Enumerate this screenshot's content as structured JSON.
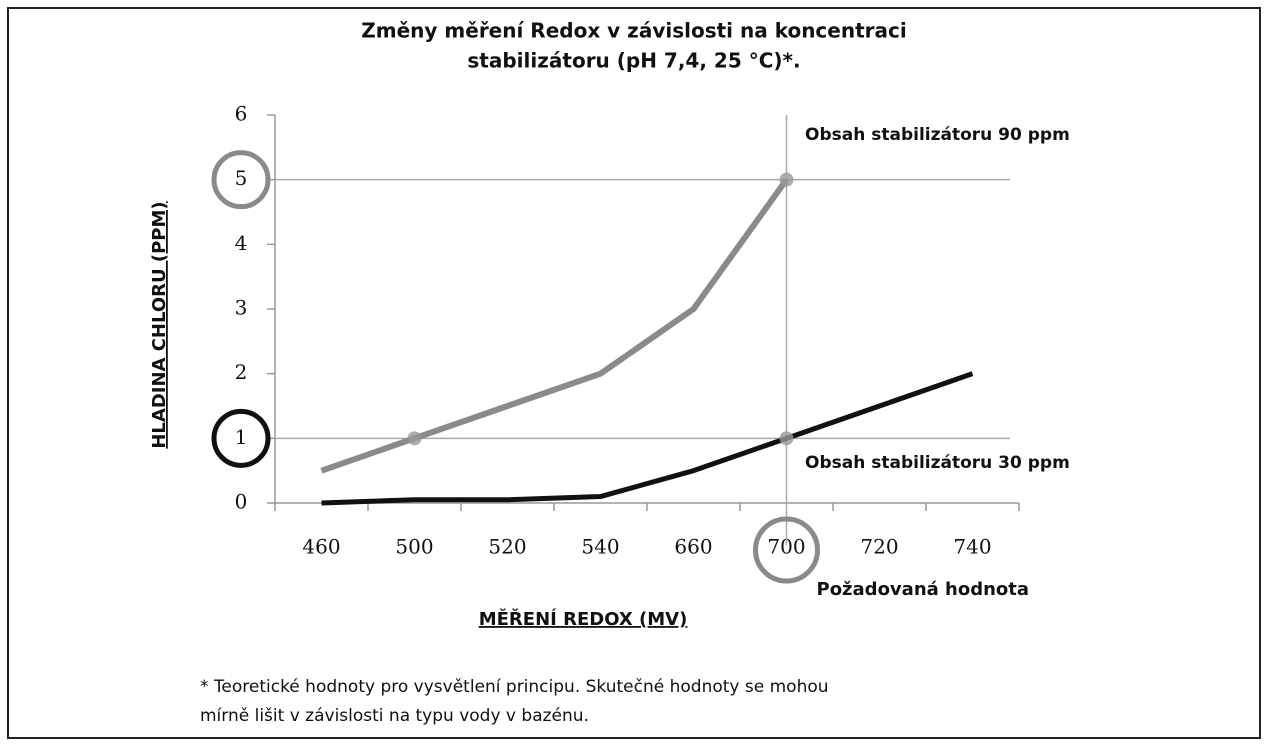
{
  "chart_data": {
    "type": "line",
    "title": [
      "Změny měření Redox v závislosti na koncentraci",
      "stabilizátoru (pH 7,4, 25 °C)*."
    ],
    "x_label": "MĚŘENÍ REDOX (MV)",
    "y_label": "HLADINA CHLORU (PPM)",
    "categories": [
      "460",
      "500",
      "520",
      "540",
      "660",
      "700",
      "720",
      "740"
    ],
    "series": [
      {
        "name": "Obsah stabilizátoru 90 ppm",
        "color": "#8a8a8a",
        "values": [
          0.5,
          1,
          1.5,
          2,
          3,
          5,
          null,
          null
        ]
      },
      {
        "name": "Obsah stabilizátoru 30 ppm",
        "color": "#111111",
        "values": [
          0,
          0.05,
          0.05,
          0.1,
          0.5,
          1,
          1.5,
          2
        ]
      }
    ],
    "ylim": [
      0,
      6
    ],
    "yticks": [
      0,
      1,
      2,
      3,
      4,
      5,
      6
    ],
    "reference_lines": [
      {
        "axis": "y",
        "value": 5,
        "color": "#8a8a8a"
      },
      {
        "axis": "y",
        "value": 1,
        "color": "#111111"
      },
      {
        "axis": "x",
        "value": "700",
        "color": "#8a8a8a",
        "label": "Požadovaná hodnota"
      }
    ],
    "footnote": [
      "* Teoretické hodnoty pro vysvětlení principu. Skutečné hodnoty se mohou",
      "mírně lišit v závislosti na typu vody v bazénu."
    ]
  }
}
